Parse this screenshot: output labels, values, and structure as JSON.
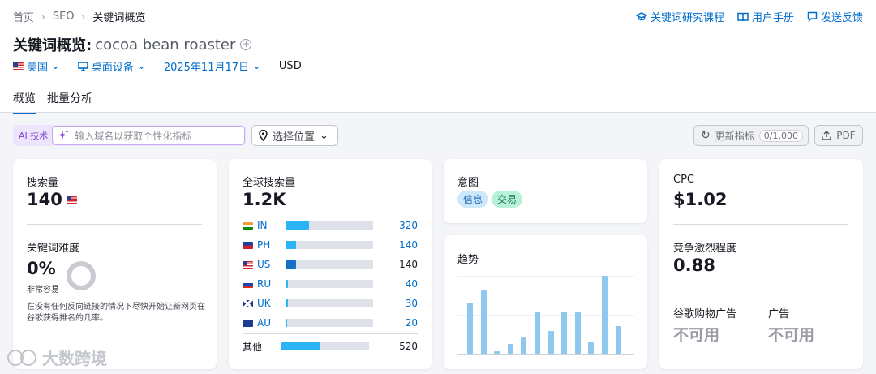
{
  "breadcrumb": [
    "首页",
    "SEO",
    "关键词概览"
  ],
  "top_links": [
    "关键词研究课程",
    "用户手册",
    "发送反馈"
  ],
  "title": {
    "prefix": "关键词概览:",
    "keyword": "cocoa bean roaster"
  },
  "filters": {
    "country": "美国",
    "device": "桌面设备",
    "date": "2025年11月17日",
    "currency": "USD"
  },
  "tabs": [
    "概览",
    "批量分析"
  ],
  "ai": {
    "label": "AI 技术",
    "placeholder": "输入域名以获取个性化指标"
  },
  "location": "选择位置",
  "update": {
    "label": "更新指标",
    "count": "0/1,000"
  },
  "pdf": "PDF",
  "volume": {
    "label": "搜索量",
    "value": "140"
  },
  "difficulty": {
    "label": "关键词难度",
    "value": "0%",
    "level": "非常容易",
    "percent": 0,
    "note": "在没有任何反向链接的情况下尽快开始让新网页在谷歌获得排名的几率。"
  },
  "global": {
    "label": "全球搜索量",
    "value": "1.2K",
    "countries": [
      {
        "code": "IN",
        "value": "320",
        "share": 0.27
      },
      {
        "code": "PH",
        "value": "140",
        "share": 0.12
      },
      {
        "code": "US",
        "value": "140",
        "share": 0.12
      },
      {
        "code": "RU",
        "value": "40",
        "share": 0.03
      },
      {
        "code": "UK",
        "value": "30",
        "share": 0.025
      },
      {
        "code": "AU",
        "value": "20",
        "share": 0.02
      }
    ],
    "other": {
      "label": "其他",
      "value": "520",
      "share": 0.44
    }
  },
  "intent": {
    "label": "意图",
    "badges": [
      "信息",
      "交易"
    ]
  },
  "trend": {
    "label": "趋势",
    "values": [
      0.66,
      0.81,
      0.03,
      0.12,
      0.21,
      0.54,
      0.29,
      0.54,
      0.54,
      0.15,
      1.0,
      0.35
    ]
  },
  "cpc": {
    "label": "CPC",
    "value": "$1.02"
  },
  "competition": {
    "label": "竞争激烈程度",
    "value": "0.88"
  },
  "ads": [
    {
      "label": "谷歌购物广告",
      "value": "不可用"
    },
    {
      "label": "广告",
      "value": "不可用"
    }
  ],
  "watermark": "大数跨境",
  "colors": {
    "accent": "#006dca",
    "bar": "#2ab4f5",
    "trend_bar": "#8ec8ee"
  }
}
